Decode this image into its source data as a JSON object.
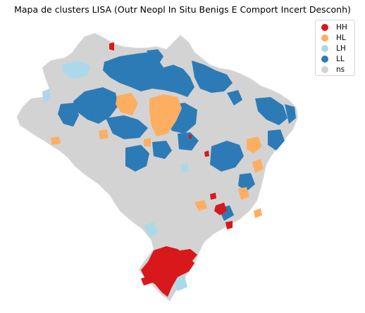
{
  "title": "Mapa de clusters LISA (Outr Neopl In Situ Benigs E Comport Incert Desconh)",
  "legend": [
    {
      "label": "HH",
      "color": "#d7191c"
    },
    {
      "label": "HL",
      "color": "#fdae61"
    },
    {
      "label": "LH",
      "color": "#abd9e9"
    },
    {
      "label": "LL",
      "color": "#2c7bb6"
    },
    {
      "label": "ns",
      "color": "#d3d3d3"
    }
  ]
}
